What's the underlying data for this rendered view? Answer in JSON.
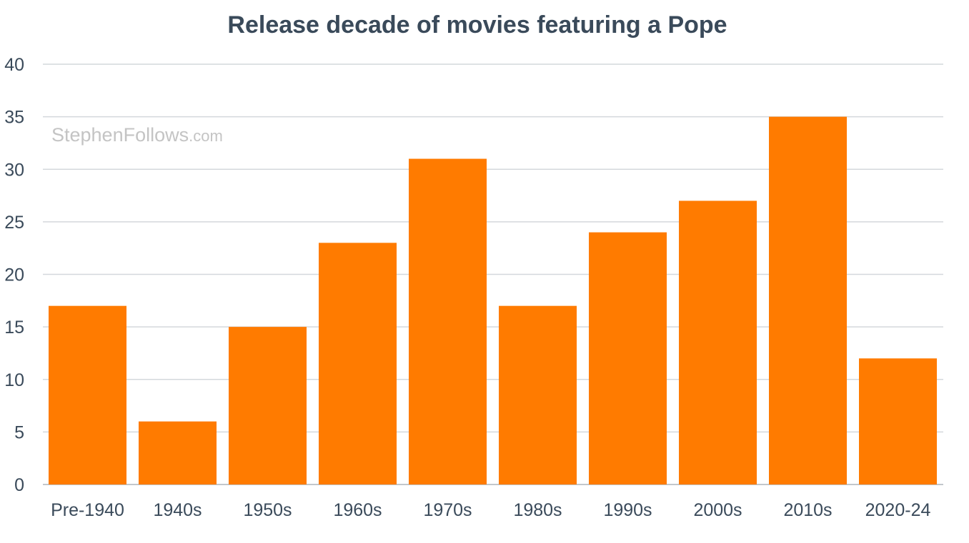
{
  "watermark": {
    "main": "StephenFollows",
    "suffix": ".com"
  },
  "chart_data": {
    "type": "bar",
    "title": "Release decade of movies featuring a Pope",
    "xlabel": "",
    "ylabel": "",
    "categories": [
      "Pre-1940",
      "1940s",
      "1950s",
      "1960s",
      "1970s",
      "1980s",
      "1990s",
      "2000s",
      "2010s",
      "2020-24"
    ],
    "values": [
      17,
      6,
      15,
      23,
      31,
      17,
      24,
      27,
      35,
      12
    ],
    "ylim": [
      0,
      40
    ],
    "yticks": [
      0,
      5,
      10,
      15,
      20,
      25,
      30,
      35,
      40
    ],
    "grid": true,
    "legend": "none",
    "bar_color": "#ff7b00",
    "title_color": "#3a4a5a",
    "label_color": "#3a4a5a",
    "grid_color": "#d4d8dc"
  }
}
